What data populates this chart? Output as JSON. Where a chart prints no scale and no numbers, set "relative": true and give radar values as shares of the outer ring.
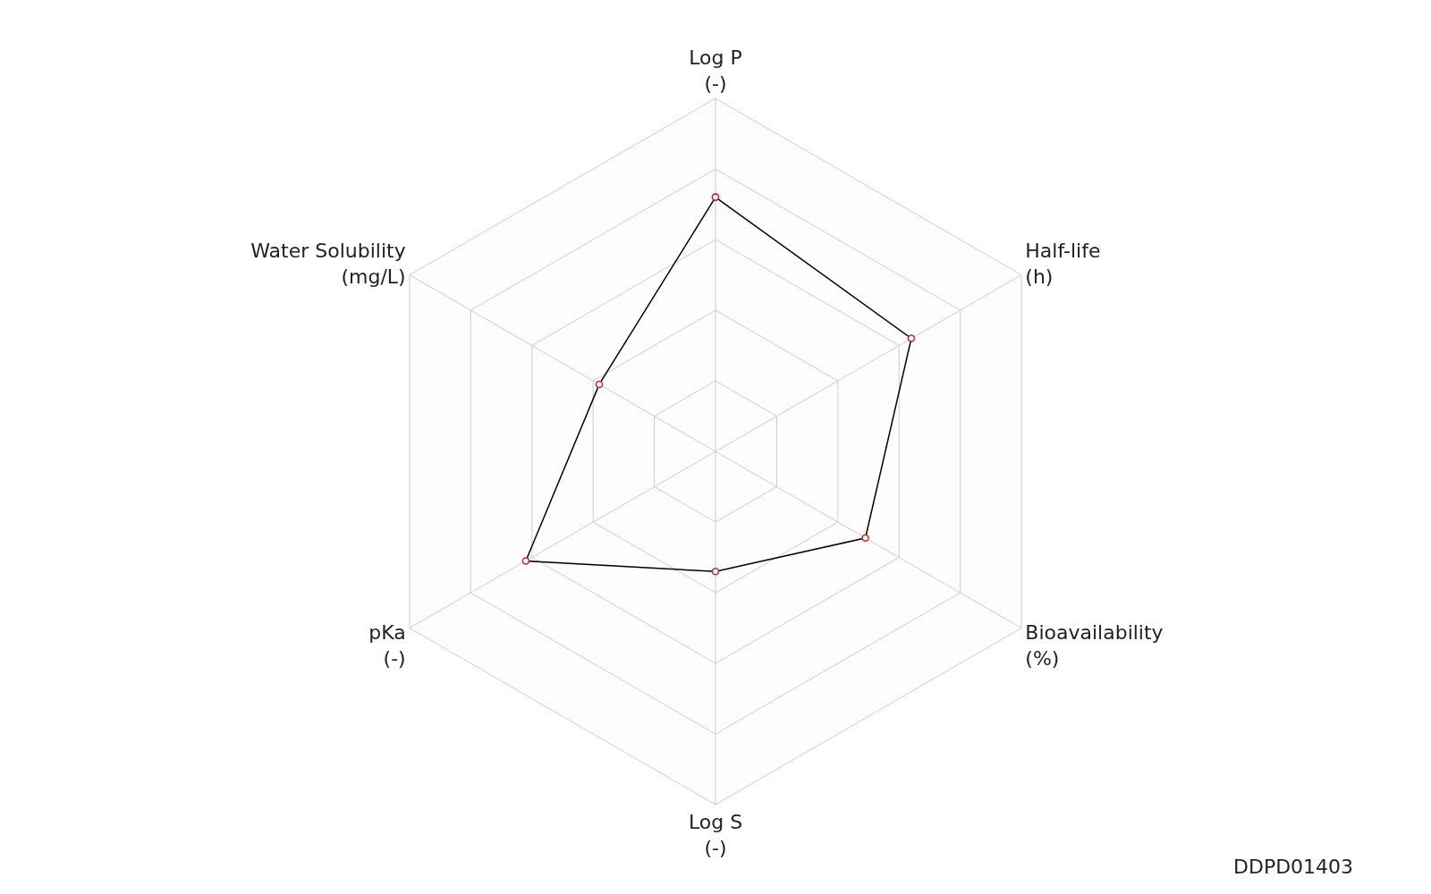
{
  "chart_data": {
    "type": "radar",
    "relative": true,
    "grid": true,
    "marker": "circle",
    "legend": false,
    "categories": [
      "Log P\n(-)",
      "Half-life\n(h)",
      "Bioavailability\n(%)",
      "Log S\n(-)",
      "pKa\n(-)",
      "Water Solubility\n(mg/L)"
    ],
    "series": [
      {
        "color": "#000000",
        "values": [
          0.72,
          0.64,
          0.49,
          0.34,
          0.62,
          0.38
        ]
      }
    ],
    "annotations": [
      "DDPD01403"
    ]
  }
}
